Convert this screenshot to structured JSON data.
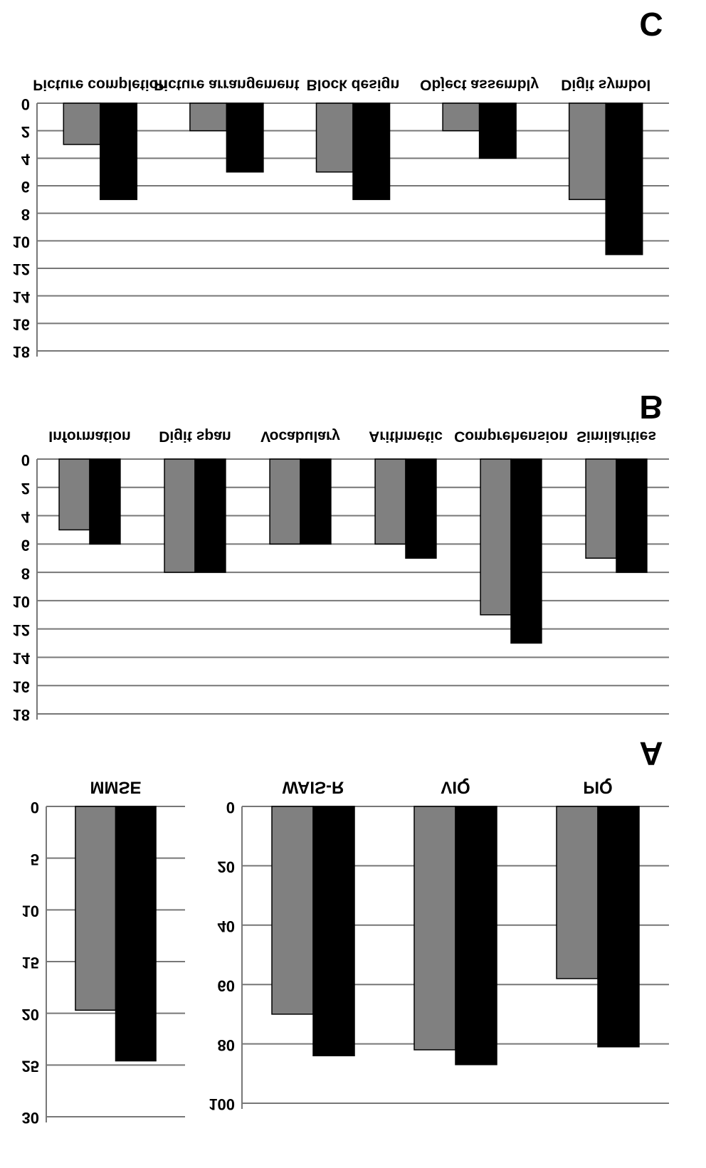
{
  "chart_data": [
    {
      "type": "bar",
      "panel": "C",
      "categories": [
        "Picture completion",
        "Picture arrangement",
        "Block design",
        "Object assembly",
        "Digit symbol"
      ],
      "series": [
        {
          "color": "#808080",
          "values": [
            3,
            2,
            5,
            2,
            7
          ]
        },
        {
          "color": "#000000",
          "values": [
            7,
            5,
            7,
            4,
            11
          ]
        }
      ],
      "ylim": [
        0,
        18
      ],
      "yticks": [
        0,
        2,
        4,
        6,
        8,
        10,
        12,
        14,
        16,
        18
      ],
      "grid": true,
      "inverted": true
    },
    {
      "type": "bar",
      "panel": "B",
      "categories": [
        "Information",
        "Digit span",
        "Vocabulary",
        "Arithmetic",
        "Comprehension",
        "Similarities"
      ],
      "series": [
        {
          "color": "#808080",
          "values": [
            5,
            8,
            6,
            6,
            11,
            7
          ]
        },
        {
          "color": "#000000",
          "values": [
            6,
            8,
            6,
            7,
            13,
            8
          ]
        }
      ],
      "ylim": [
        0,
        18
      ],
      "yticks": [
        0,
        2,
        4,
        6,
        8,
        10,
        12,
        14,
        16,
        18
      ],
      "grid": true,
      "inverted": true
    },
    {
      "type": "bar",
      "categories": [
        "MMSE"
      ],
      "series": [
        {
          "color": "#808080",
          "values": [
            19.7
          ]
        },
        {
          "color": "#000000",
          "values": [
            24.6
          ]
        }
      ],
      "ylim": [
        0,
        30
      ],
      "yticks": [
        0,
        5,
        10,
        15,
        20,
        25,
        30
      ],
      "grid": true,
      "inverted": true
    },
    {
      "type": "bar",
      "panel": "A",
      "categories": [
        "WAIS-R",
        "VIQ",
        "PIQ"
      ],
      "series": [
        {
          "color": "#808080",
          "values": [
            70,
            82,
            58
          ]
        },
        {
          "color": "#000000",
          "values": [
            84,
            87,
            81
          ]
        }
      ],
      "ylim": [
        0,
        100
      ],
      "yticks": [
        0,
        20,
        40,
        60,
        80,
        100
      ],
      "grid": true,
      "inverted": true
    }
  ]
}
